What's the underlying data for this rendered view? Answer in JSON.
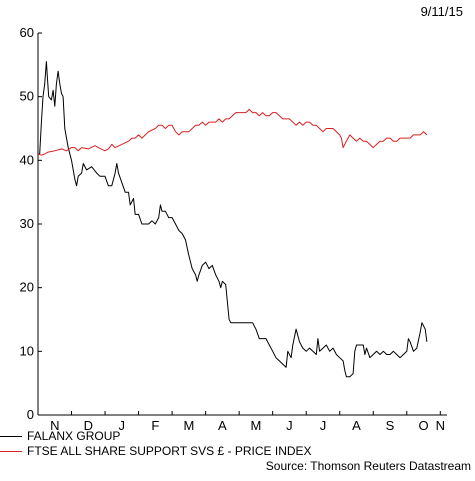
{
  "date_label": "9/11/15",
  "source": "Source: Thomson Reuters Datastream",
  "chart_data": {
    "type": "line",
    "ylim": [
      0,
      60
    ],
    "yticks": [
      0,
      10,
      20,
      30,
      40,
      50,
      60
    ],
    "xlim": [
      0,
      12.2
    ],
    "month_ticks": [
      {
        "label": "N",
        "x": 0.5
      },
      {
        "label": "D",
        "x": 1.5
      },
      {
        "label": "J",
        "x": 2.5
      },
      {
        "label": "F",
        "x": 3.5
      },
      {
        "label": "M",
        "x": 4.5
      },
      {
        "label": "A",
        "x": 5.5
      },
      {
        "label": "M",
        "x": 6.5
      },
      {
        "label": "J",
        "x": 7.5
      },
      {
        "label": "J",
        "x": 8.5
      },
      {
        "label": "A",
        "x": 9.5
      },
      {
        "label": "S",
        "x": 10.5
      },
      {
        "label": "O",
        "x": 11.5
      },
      {
        "label": "N",
        "x": 12.0
      }
    ],
    "grid": false,
    "legend_position": "bottom-left",
    "series": [
      {
        "name": "FALANX GROUP",
        "color": "#000000",
        "points": [
          [
            0.0,
            41
          ],
          [
            0.05,
            41
          ],
          [
            0.1,
            46
          ],
          [
            0.15,
            50
          ],
          [
            0.2,
            52
          ],
          [
            0.25,
            55.5
          ],
          [
            0.28,
            53
          ],
          [
            0.32,
            50
          ],
          [
            0.4,
            49.5
          ],
          [
            0.45,
            51
          ],
          [
            0.5,
            48.5
          ],
          [
            0.55,
            52
          ],
          [
            0.6,
            54
          ],
          [
            0.65,
            52
          ],
          [
            0.7,
            50.5
          ],
          [
            0.75,
            50
          ],
          [
            0.8,
            45
          ],
          [
            0.9,
            42
          ],
          [
            1.0,
            40
          ],
          [
            1.1,
            37
          ],
          [
            1.15,
            36
          ],
          [
            1.2,
            37.5
          ],
          [
            1.3,
            38
          ],
          [
            1.35,
            39.5
          ],
          [
            1.45,
            38.5
          ],
          [
            1.6,
            39
          ],
          [
            1.75,
            38
          ],
          [
            1.85,
            37.5
          ],
          [
            2.0,
            37.5
          ],
          [
            2.1,
            36
          ],
          [
            2.2,
            36
          ],
          [
            2.3,
            38
          ],
          [
            2.35,
            39.5
          ],
          [
            2.4,
            38
          ],
          [
            2.5,
            36.5
          ],
          [
            2.6,
            35
          ],
          [
            2.7,
            35
          ],
          [
            2.75,
            33
          ],
          [
            2.85,
            34
          ],
          [
            2.9,
            31.5
          ],
          [
            3.0,
            31.5
          ],
          [
            3.1,
            30
          ],
          [
            3.3,
            30
          ],
          [
            3.4,
            30.5
          ],
          [
            3.5,
            30
          ],
          [
            3.6,
            31
          ],
          [
            3.65,
            33
          ],
          [
            3.7,
            32
          ],
          [
            3.8,
            32
          ],
          [
            3.9,
            31
          ],
          [
            4.0,
            31
          ],
          [
            4.1,
            30
          ],
          [
            4.2,
            29
          ],
          [
            4.3,
            28.5
          ],
          [
            4.4,
            27.5
          ],
          [
            4.5,
            25
          ],
          [
            4.6,
            23
          ],
          [
            4.7,
            22
          ],
          [
            4.75,
            21
          ],
          [
            4.8,
            22
          ],
          [
            4.9,
            23.5
          ],
          [
            5.0,
            24
          ],
          [
            5.1,
            23
          ],
          [
            5.2,
            23.5
          ],
          [
            5.3,
            22
          ],
          [
            5.4,
            21
          ],
          [
            5.45,
            20
          ],
          [
            5.5,
            21
          ],
          [
            5.6,
            20.5
          ],
          [
            5.7,
            15
          ],
          [
            5.75,
            14.5
          ],
          [
            6.0,
            14.5
          ],
          [
            6.3,
            14.5
          ],
          [
            6.4,
            14.5
          ],
          [
            6.5,
            13.5
          ],
          [
            6.6,
            12
          ],
          [
            6.8,
            12
          ],
          [
            6.9,
            11
          ],
          [
            7.0,
            10
          ],
          [
            7.1,
            9
          ],
          [
            7.2,
            8.5
          ],
          [
            7.3,
            8
          ],
          [
            7.4,
            7.5
          ],
          [
            7.45,
            10
          ],
          [
            7.55,
            9
          ],
          [
            7.6,
            11
          ],
          [
            7.7,
            13.5
          ],
          [
            7.75,
            12.5
          ],
          [
            7.8,
            11.5
          ],
          [
            7.9,
            10.5
          ],
          [
            8.0,
            10
          ],
          [
            8.1,
            10.5
          ],
          [
            8.2,
            10
          ],
          [
            8.3,
            9.5
          ],
          [
            8.35,
            12
          ],
          [
            8.4,
            10
          ],
          [
            8.5,
            10.5
          ],
          [
            8.6,
            11
          ],
          [
            8.7,
            10
          ],
          [
            8.8,
            10.5
          ],
          [
            8.9,
            9.5
          ],
          [
            9.0,
            9
          ],
          [
            9.1,
            8.5
          ],
          [
            9.15,
            7
          ],
          [
            9.2,
            6
          ],
          [
            9.3,
            6
          ],
          [
            9.4,
            6.5
          ],
          [
            9.45,
            10
          ],
          [
            9.5,
            11
          ],
          [
            9.7,
            11
          ],
          [
            9.75,
            9.5
          ],
          [
            9.8,
            10.5
          ],
          [
            9.9,
            9
          ],
          [
            10.0,
            9.5
          ],
          [
            10.1,
            10
          ],
          [
            10.2,
            9.5
          ],
          [
            10.3,
            10
          ],
          [
            10.4,
            9.5
          ],
          [
            10.5,
            9.5
          ],
          [
            10.6,
            10
          ],
          [
            10.7,
            9.5
          ],
          [
            10.8,
            9
          ],
          [
            10.9,
            9.5
          ],
          [
            11.0,
            10
          ],
          [
            11.05,
            12
          ],
          [
            11.1,
            11.5
          ],
          [
            11.2,
            10
          ],
          [
            11.3,
            10.5
          ],
          [
            11.4,
            13
          ],
          [
            11.45,
            14.5
          ],
          [
            11.55,
            13.5
          ],
          [
            11.6,
            11.5
          ]
        ]
      },
      {
        "name": "FTSE ALL SHARE SUPPORT SVS £ - PRICE INDEX",
        "color": "#d92020",
        "points": [
          [
            0.0,
            41
          ],
          [
            0.1,
            40.8
          ],
          [
            0.2,
            41
          ],
          [
            0.3,
            41.3
          ],
          [
            0.5,
            41.5
          ],
          [
            0.7,
            41.8
          ],
          [
            0.85,
            41.5
          ],
          [
            1.0,
            42
          ],
          [
            1.1,
            42
          ],
          [
            1.2,
            41.5
          ],
          [
            1.3,
            42
          ],
          [
            1.5,
            41.8
          ],
          [
            1.7,
            42.3
          ],
          [
            1.8,
            42
          ],
          [
            2.0,
            41.5
          ],
          [
            2.1,
            41.8
          ],
          [
            2.2,
            42.5
          ],
          [
            2.3,
            42
          ],
          [
            2.5,
            42.5
          ],
          [
            2.7,
            43
          ],
          [
            2.8,
            43.5
          ],
          [
            2.9,
            43.5
          ],
          [
            3.0,
            44
          ],
          [
            3.1,
            43.5
          ],
          [
            3.2,
            44
          ],
          [
            3.3,
            44.5
          ],
          [
            3.5,
            45
          ],
          [
            3.6,
            45.5
          ],
          [
            3.7,
            45.5
          ],
          [
            3.8,
            45
          ],
          [
            3.9,
            45.5
          ],
          [
            4.0,
            45.5
          ],
          [
            4.1,
            44.5
          ],
          [
            4.2,
            44
          ],
          [
            4.3,
            44.5
          ],
          [
            4.5,
            44.5
          ],
          [
            4.6,
            45
          ],
          [
            4.7,
            45.5
          ],
          [
            4.8,
            45.5
          ],
          [
            4.9,
            46
          ],
          [
            5.0,
            45.5
          ],
          [
            5.1,
            46
          ],
          [
            5.2,
            46
          ],
          [
            5.3,
            46
          ],
          [
            5.4,
            46.5
          ],
          [
            5.5,
            46
          ],
          [
            5.6,
            46.5
          ],
          [
            5.7,
            46.5
          ],
          [
            5.8,
            47
          ],
          [
            5.9,
            47.5
          ],
          [
            6.0,
            47.5
          ],
          [
            6.1,
            47.5
          ],
          [
            6.2,
            47.5
          ],
          [
            6.3,
            48
          ],
          [
            6.4,
            47.5
          ],
          [
            6.5,
            47.5
          ],
          [
            6.6,
            47
          ],
          [
            6.7,
            47.5
          ],
          [
            6.8,
            47
          ],
          [
            6.9,
            47
          ],
          [
            7.0,
            47.5
          ],
          [
            7.1,
            47.5
          ],
          [
            7.2,
            47
          ],
          [
            7.3,
            46.5
          ],
          [
            7.4,
            46.5
          ],
          [
            7.5,
            46.5
          ],
          [
            7.6,
            46
          ],
          [
            7.7,
            45.5
          ],
          [
            7.8,
            46
          ],
          [
            7.9,
            45.5
          ],
          [
            8.0,
            46
          ],
          [
            8.1,
            46
          ],
          [
            8.2,
            45.5
          ],
          [
            8.3,
            45.5
          ],
          [
            8.4,
            45
          ],
          [
            8.5,
            44.5
          ],
          [
            8.6,
            45
          ],
          [
            8.7,
            45
          ],
          [
            8.8,
            45
          ],
          [
            8.9,
            44.5
          ],
          [
            9.0,
            44
          ],
          [
            9.05,
            43.5
          ],
          [
            9.1,
            42
          ],
          [
            9.2,
            43
          ],
          [
            9.3,
            44
          ],
          [
            9.4,
            43.5
          ],
          [
            9.5,
            43
          ],
          [
            9.6,
            43.5
          ],
          [
            9.7,
            43
          ],
          [
            9.8,
            43
          ],
          [
            9.9,
            42.5
          ],
          [
            10.0,
            42
          ],
          [
            10.1,
            42.5
          ],
          [
            10.2,
            43
          ],
          [
            10.3,
            43
          ],
          [
            10.4,
            43.5
          ],
          [
            10.5,
            43.5
          ],
          [
            10.6,
            43
          ],
          [
            10.7,
            43
          ],
          [
            10.8,
            43.5
          ],
          [
            10.9,
            43.5
          ],
          [
            11.0,
            43.5
          ],
          [
            11.1,
            43.5
          ],
          [
            11.2,
            44
          ],
          [
            11.3,
            44
          ],
          [
            11.4,
            44
          ],
          [
            11.5,
            44.5
          ],
          [
            11.6,
            44
          ]
        ]
      }
    ]
  }
}
